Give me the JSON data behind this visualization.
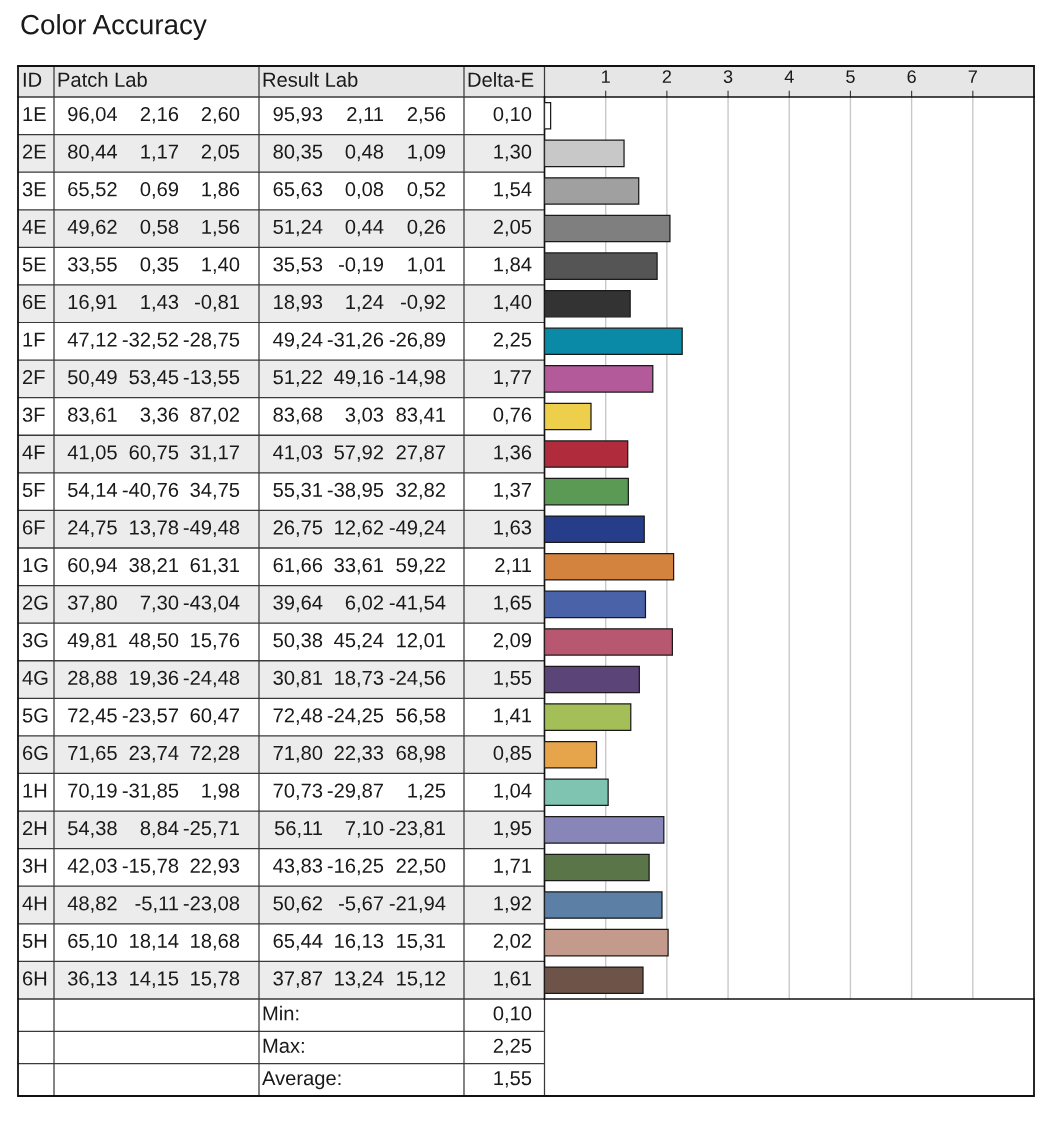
{
  "chart_data": {
    "type": "bar",
    "orientation": "horizontal",
    "title": "Color Accuracy",
    "categories": [
      "1E",
      "2E",
      "3E",
      "4E",
      "5E",
      "6E",
      "1F",
      "2F",
      "3F",
      "4F",
      "5F",
      "6F",
      "1G",
      "2G",
      "3G",
      "4G",
      "5G",
      "6G",
      "1H",
      "2H",
      "3H",
      "4H",
      "5H",
      "6H"
    ],
    "values": [
      0.1,
      1.3,
      1.54,
      2.05,
      1.84,
      1.4,
      2.25,
      1.77,
      0.76,
      1.36,
      1.37,
      1.63,
      2.11,
      1.65,
      2.09,
      1.55,
      1.41,
      0.85,
      1.04,
      1.95,
      1.71,
      1.92,
      2.02,
      1.61
    ],
    "colors": [
      "#ffffff",
      "#c8c8c8",
      "#a0a0a0",
      "#7f7f7f",
      "#555555",
      "#333333",
      "#0a8aa6",
      "#b25a9a",
      "#eecf4c",
      "#b02c3c",
      "#5a9a55",
      "#263d8a",
      "#d4833e",
      "#4a63a8",
      "#b85870",
      "#5a4478",
      "#a4bf58",
      "#e6a54a",
      "#7ec4b0",
      "#8886b8",
      "#5a7548",
      "#5b7fa5",
      "#c39a8c",
      "#6e5448"
    ],
    "value_labels": [
      "0,10",
      "1,30",
      "1,54",
      "2,05",
      "1,84",
      "1,40",
      "2,25",
      "1,77",
      "0,76",
      "1,36",
      "1,37",
      "1,63",
      "2,11",
      "1,65",
      "2,09",
      "1,55",
      "1,41",
      "0,85",
      "1,04",
      "1,95",
      "1,71",
      "1,92",
      "2,02",
      "1,61"
    ],
    "xlim": [
      0,
      8
    ],
    "x2lim": [
      0,
      8
    ],
    "x2ticks": [
      1,
      2,
      3,
      4,
      5,
      6,
      7
    ],
    "grid": "x",
    "annotations": [
      "ID",
      "Patch Lab",
      "Result Lab",
      "Delta-E",
      "96,04",
      "2,16",
      "2,60",
      "95,93",
      "2,11",
      "2,56",
      "80,44",
      "1,17",
      "2,05",
      "80,35",
      "0,48",
      "1,09",
      "65,52",
      "0,69",
      "1,86",
      "65,63",
      "0,08",
      "0,52",
      "49,62",
      "0,58",
      "1,56",
      "51,24",
      "0,44",
      "0,26",
      "33,55",
      "0,35",
      "1,40",
      "35,53",
      "-0,19",
      "1,01",
      "16,91",
      "1,43",
      "-0,81",
      "18,93",
      "1,24",
      "-0,92",
      "47,12",
      "-32,52",
      "-28,75",
      "49,24",
      "-31,26",
      "-26,89",
      "50,49",
      "53,45",
      "-13,55",
      "51,22",
      "49,16",
      "-14,98",
      "83,61",
      "3,36",
      "87,02",
      "83,68",
      "3,03",
      "83,41",
      "41,05",
      "60,75",
      "31,17",
      "41,03",
      "57,92",
      "27,87",
      "54,14",
      "-40,76",
      "34,75",
      "55,31",
      "-38,95",
      "32,82",
      "24,75",
      "13,78",
      "-49,48",
      "26,75",
      "12,62",
      "-49,24",
      "60,94",
      "38,21",
      "61,31",
      "61,66",
      "33,61",
      "59,22",
      "37,80",
      "7,30",
      "-43,04",
      "39,64",
      "6,02",
      "-41,54",
      "49,81",
      "48,50",
      "15,76",
      "50,38",
      "45,24",
      "12,01",
      "28,88",
      "19,36",
      "-24,48",
      "30,81",
      "18,73",
      "-24,56",
      "72,45",
      "-23,57",
      "60,47",
      "72,48",
      "-24,25",
      "56,58",
      "71,65",
      "23,74",
      "72,28",
      "71,80",
      "22,33",
      "68,98",
      "70,19",
      "-31,85",
      "1,98",
      "70,73",
      "-29,87",
      "1,25",
      "54,38",
      "8,84",
      "-25,71",
      "56,11",
      "7,10",
      "-23,81",
      "42,03",
      "-15,78",
      "22,93",
      "43,83",
      "-16,25",
      "22,50",
      "48,82",
      "-5,11",
      "-23,08",
      "50,62",
      "-5,67",
      "-21,94",
      "65,10",
      "18,14",
      "18,68",
      "65,44",
      "16,13",
      "15,31",
      "36,13",
      "14,15",
      "15,78",
      "37,87",
      "13,24",
      "15,12",
      "Min:",
      "0,10",
      "Max:",
      "2,25",
      "Average:",
      "1,55"
    ]
  }
}
